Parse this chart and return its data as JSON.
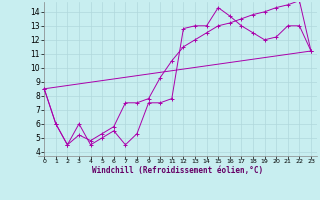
{
  "xlabel": "Windchill (Refroidissement éolien,°C)",
  "bg_color": "#c8eef0",
  "grid_color": "#b0d8dc",
  "line_color": "#aa00aa",
  "xlim": [
    -0.5,
    23.5
  ],
  "ylim": [
    3.7,
    14.7
  ],
  "yticks": [
    4,
    5,
    6,
    7,
    8,
    9,
    10,
    11,
    12,
    13,
    14
  ],
  "xticks": [
    0,
    1,
    2,
    3,
    4,
    5,
    6,
    7,
    8,
    9,
    10,
    11,
    12,
    13,
    14,
    15,
    16,
    17,
    18,
    19,
    20,
    21,
    22,
    23
  ],
  "series1_x": [
    0,
    1,
    2,
    3,
    4,
    5,
    6,
    7,
    8,
    9,
    10,
    11,
    12,
    13,
    14,
    15,
    16,
    17,
    18,
    19,
    20,
    21,
    22,
    23
  ],
  "series1_y": [
    8.5,
    6.0,
    4.5,
    6.0,
    4.5,
    5.0,
    5.5,
    4.5,
    5.3,
    7.5,
    7.5,
    7.8,
    12.8,
    13.0,
    13.0,
    14.3,
    13.7,
    13.0,
    12.5,
    12.0,
    12.2,
    13.0,
    13.0,
    11.2
  ],
  "series2_x": [
    0,
    1,
    2,
    3,
    4,
    5,
    6,
    7,
    8,
    9,
    10,
    11,
    12,
    13,
    14,
    15,
    16,
    17,
    18,
    19,
    20,
    21,
    22,
    23
  ],
  "series2_y": [
    8.5,
    6.0,
    4.5,
    5.2,
    4.8,
    5.3,
    5.8,
    7.5,
    7.5,
    7.8,
    9.3,
    10.5,
    11.5,
    12.0,
    12.5,
    13.0,
    13.2,
    13.5,
    13.8,
    14.0,
    14.3,
    14.5,
    14.8,
    11.2
  ],
  "series3_x": [
    0,
    23
  ],
  "series3_y": [
    8.5,
    11.2
  ]
}
